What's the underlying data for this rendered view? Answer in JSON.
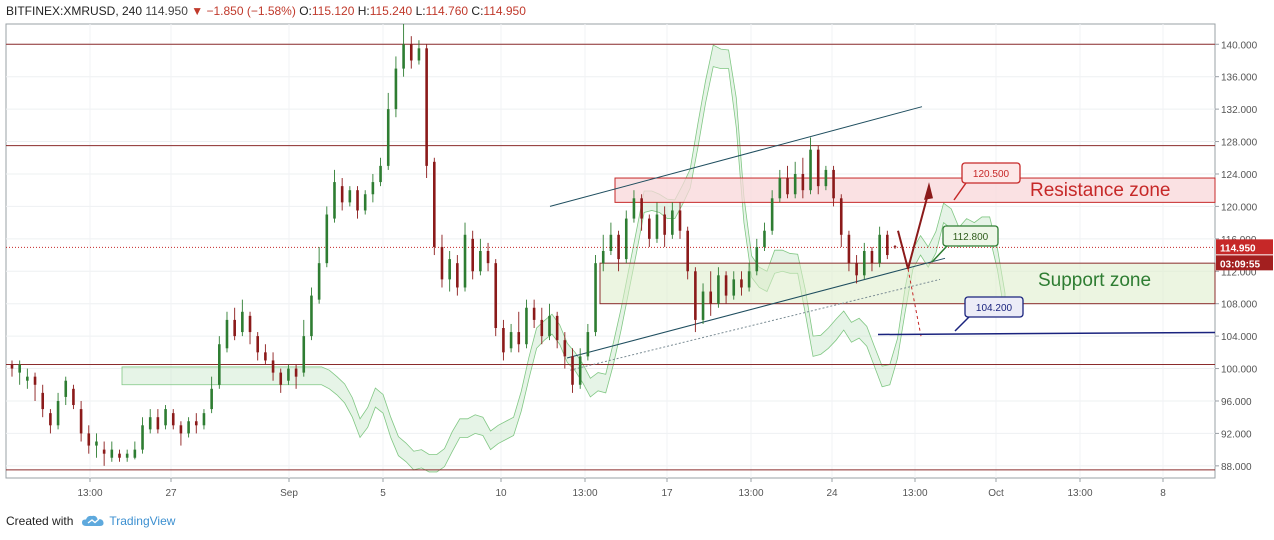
{
  "header": {
    "symbol": "BITFINEX:XMRUSD, 240",
    "last": "114.950",
    "change": "−1.850 (−1.58%)",
    "o_label": "O:",
    "o": "115.120",
    "h_label": "H:",
    "h": "115.240",
    "l_label": "L:",
    "l": "114.760",
    "c_label": "C:",
    "c": "114.950"
  },
  "footer": {
    "created": "Created with",
    "brand": "TradingView"
  },
  "colors": {
    "bull": "#2e7d32",
    "bear": "#8b1a1a",
    "resistance": "#c62828",
    "support": "#2e7d32",
    "trend": "#1f4e5f",
    "target": "#1a237e",
    "hline": "#8b2c2c"
  },
  "chart_data": {
    "type": "candlestick",
    "ylim": [
      86.5,
      142.5
    ],
    "yticks": [
      "88.000",
      "92.000",
      "96.000",
      "100.000",
      "104.000",
      "108.000",
      "112.000",
      "116.000",
      "120.000",
      "124.000",
      "128.000",
      "132.000",
      "136.000",
      "140.000"
    ],
    "xticks": [
      "13:00",
      "27",
      "Sep",
      "5",
      "10",
      "13:00",
      "17",
      "13:00",
      "24",
      "13:00",
      "Oct",
      "13:00",
      "8"
    ],
    "price_label": "114.950",
    "countdown": "03:09:55",
    "horizontal_levels": [
      140.0,
      127.5,
      100.5,
      87.5
    ],
    "resistance_zone": {
      "label": "Resistance zone",
      "low": 120.5,
      "high": 123.5
    },
    "support_zone": {
      "label": "Support zone",
      "low": 108.0,
      "high": 113.0
    },
    "targets": [
      {
        "label": "120.500",
        "value": 120.5
      },
      {
        "label": "112.800",
        "value": 112.8
      },
      {
        "label": "104.200",
        "value": 104.2
      }
    ],
    "candles": [
      [
        100.5,
        100.0,
        99.0,
        101.0
      ],
      [
        99.5,
        100.5,
        98.0,
        101.0
      ],
      [
        98.5,
        99.0,
        97.5,
        100.0
      ],
      [
        99.0,
        98.0,
        96.0,
        99.5
      ],
      [
        97.0,
        95.0,
        94.0,
        98.0
      ],
      [
        94.5,
        93.0,
        92.0,
        95.0
      ],
      [
        93.0,
        96.0,
        92.5,
        97.0
      ],
      [
        96.5,
        98.5,
        95.5,
        99.0
      ],
      [
        97.5,
        95.5,
        95.0,
        98.0
      ],
      [
        95.0,
        92.0,
        91.0,
        96.0
      ],
      [
        92.0,
        90.5,
        89.5,
        93.0
      ],
      [
        90.5,
        91.0,
        89.0,
        92.0
      ],
      [
        90.0,
        89.5,
        88.0,
        91.0
      ],
      [
        89.0,
        90.0,
        88.5,
        91.0
      ],
      [
        89.5,
        89.0,
        88.5,
        90.0
      ],
      [
        89.0,
        89.5,
        88.5,
        90.0
      ],
      [
        89.0,
        90.0,
        88.8,
        91.0
      ],
      [
        90.0,
        93.0,
        89.5,
        94.0
      ],
      [
        92.5,
        94.0,
        92.0,
        95.0
      ],
      [
        94.0,
        92.5,
        92.0,
        95.0
      ],
      [
        93.0,
        95.0,
        92.5,
        95.5
      ],
      [
        94.5,
        93.0,
        92.5,
        95.0
      ],
      [
        93.0,
        92.0,
        90.5,
        93.5
      ],
      [
        92.0,
        93.5,
        91.5,
        94.0
      ],
      [
        93.5,
        93.0,
        92.0,
        94.5
      ],
      [
        93.0,
        94.5,
        92.5,
        95.0
      ],
      [
        95.0,
        97.5,
        94.5,
        99.0
      ],
      [
        98.0,
        103.0,
        97.5,
        104.0
      ],
      [
        102.5,
        106.0,
        102.0,
        107.0
      ],
      [
        106.0,
        104.0,
        103.5,
        107.5
      ],
      [
        104.5,
        107.0,
        104.0,
        108.5
      ],
      [
        106.5,
        104.5,
        103.0,
        107.0
      ],
      [
        104.0,
        102.0,
        101.0,
        104.5
      ],
      [
        102.0,
        101.0,
        100.5,
        103.0
      ],
      [
        101.0,
        99.5,
        98.5,
        102.0
      ],
      [
        99.5,
        98.0,
        97.0,
        100.0
      ],
      [
        98.5,
        100.0,
        98.0,
        100.5
      ],
      [
        100.0,
        99.0,
        97.5,
        100.5
      ],
      [
        99.5,
        104.0,
        99.0,
        106.0
      ],
      [
        104.0,
        109.0,
        103.5,
        110.0
      ],
      [
        108.5,
        113.0,
        108.0,
        115.0
      ],
      [
        113.0,
        119.0,
        112.5,
        120.0
      ],
      [
        118.5,
        123.0,
        118.0,
        124.5
      ],
      [
        122.5,
        120.5,
        119.5,
        123.5
      ],
      [
        120.5,
        122.0,
        120.0,
        122.5
      ],
      [
        122.0,
        119.5,
        118.5,
        122.5
      ],
      [
        119.5,
        121.5,
        119.0,
        122.0
      ],
      [
        121.5,
        123.0,
        120.5,
        124.0
      ],
      [
        123.0,
        125.0,
        122.5,
        126.0
      ],
      [
        125.0,
        132.0,
        124.5,
        134.0
      ],
      [
        132.0,
        137.0,
        131.0,
        138.5
      ],
      [
        137.0,
        140.0,
        136.0,
        142.5
      ],
      [
        140.0,
        138.0,
        137.0,
        141.0
      ],
      [
        138.0,
        139.5,
        137.5,
        140.5
      ],
      [
        139.5,
        125.0,
        123.5,
        140.0
      ],
      [
        125.5,
        115.0,
        114.0,
        126.0
      ],
      [
        115.0,
        111.0,
        110.0,
        116.5
      ],
      [
        111.0,
        113.5,
        109.5,
        114.5
      ],
      [
        113.0,
        110.0,
        109.0,
        114.0
      ],
      [
        110.0,
        116.5,
        109.5,
        118.0
      ],
      [
        116.0,
        112.0,
        111.0,
        117.0
      ],
      [
        112.0,
        114.5,
        111.5,
        116.0
      ],
      [
        114.5,
        113.0,
        112.0,
        115.5
      ],
      [
        113.0,
        105.0,
        104.0,
        113.5
      ],
      [
        105.0,
        102.0,
        101.0,
        106.0
      ],
      [
        102.5,
        104.5,
        102.0,
        105.5
      ],
      [
        104.5,
        103.0,
        102.0,
        107.0
      ],
      [
        103.0,
        107.5,
        102.5,
        108.5
      ],
      [
        107.5,
        106.0,
        105.0,
        108.5
      ],
      [
        106.0,
        104.0,
        103.0,
        107.5
      ],
      [
        104.0,
        106.5,
        103.5,
        108.0
      ],
      [
        106.5,
        103.5,
        102.5,
        107.0
      ],
      [
        103.5,
        101.5,
        100.0,
        104.5
      ],
      [
        101.5,
        98.0,
        97.0,
        102.5
      ],
      [
        98.0,
        101.5,
        97.5,
        102.5
      ],
      [
        101.5,
        104.5,
        101.0,
        105.5
      ],
      [
        104.5,
        113.0,
        104.0,
        114.0
      ],
      [
        113.0,
        114.5,
        112.0,
        116.5
      ],
      [
        114.5,
        116.5,
        114.0,
        118.0
      ],
      [
        116.5,
        113.5,
        112.0,
        117.0
      ],
      [
        113.5,
        118.5,
        113.0,
        119.5
      ],
      [
        118.5,
        121.0,
        118.0,
        122.0
      ],
      [
        121.0,
        118.5,
        117.0,
        121.5
      ],
      [
        118.5,
        116.0,
        115.0,
        119.0
      ],
      [
        116.0,
        119.0,
        115.5,
        120.5
      ],
      [
        119.0,
        116.5,
        115.0,
        120.0
      ],
      [
        116.5,
        119.5,
        116.0,
        120.5
      ],
      [
        119.5,
        117.0,
        116.0,
        120.5
      ],
      [
        117.0,
        112.0,
        111.0,
        117.5
      ],
      [
        112.0,
        106.0,
        104.5,
        112.5
      ],
      [
        106.0,
        109.5,
        105.5,
        110.5
      ],
      [
        109.5,
        108.0,
        106.5,
        112.0
      ],
      [
        108.0,
        111.5,
        107.5,
        112.5
      ],
      [
        111.5,
        109.0,
        108.0,
        112.0
      ],
      [
        109.0,
        111.0,
        108.5,
        112.0
      ],
      [
        111.0,
        110.0,
        109.0,
        112.0
      ],
      [
        110.0,
        112.0,
        109.5,
        113.0
      ],
      [
        112.0,
        115.0,
        111.5,
        116.0
      ],
      [
        115.0,
        117.0,
        114.5,
        118.0
      ],
      [
        117.0,
        121.0,
        116.5,
        122.0
      ],
      [
        121.0,
        123.5,
        120.5,
        124.5
      ],
      [
        123.5,
        121.5,
        121.0,
        125.0
      ],
      [
        121.5,
        124.0,
        121.0,
        125.5
      ],
      [
        124.0,
        122.0,
        121.0,
        126.0
      ],
      [
        122.0,
        127.0,
        121.5,
        128.5
      ],
      [
        127.0,
        122.5,
        121.5,
        127.5
      ],
      [
        122.5,
        124.5,
        122.0,
        125.0
      ],
      [
        124.5,
        121.0,
        120.0,
        125.0
      ],
      [
        121.0,
        116.5,
        115.0,
        121.5
      ],
      [
        116.5,
        113.0,
        112.0,
        117.0
      ],
      [
        113.0,
        111.5,
        110.5,
        114.0
      ],
      [
        111.5,
        114.5,
        111.0,
        115.5
      ],
      [
        114.5,
        113.0,
        112.0,
        115.0
      ],
      [
        113.0,
        116.5,
        112.5,
        117.5
      ],
      [
        116.5,
        114.0,
        113.5,
        117.0
      ],
      [
        115.1,
        114.95,
        114.76,
        115.24
      ]
    ]
  }
}
